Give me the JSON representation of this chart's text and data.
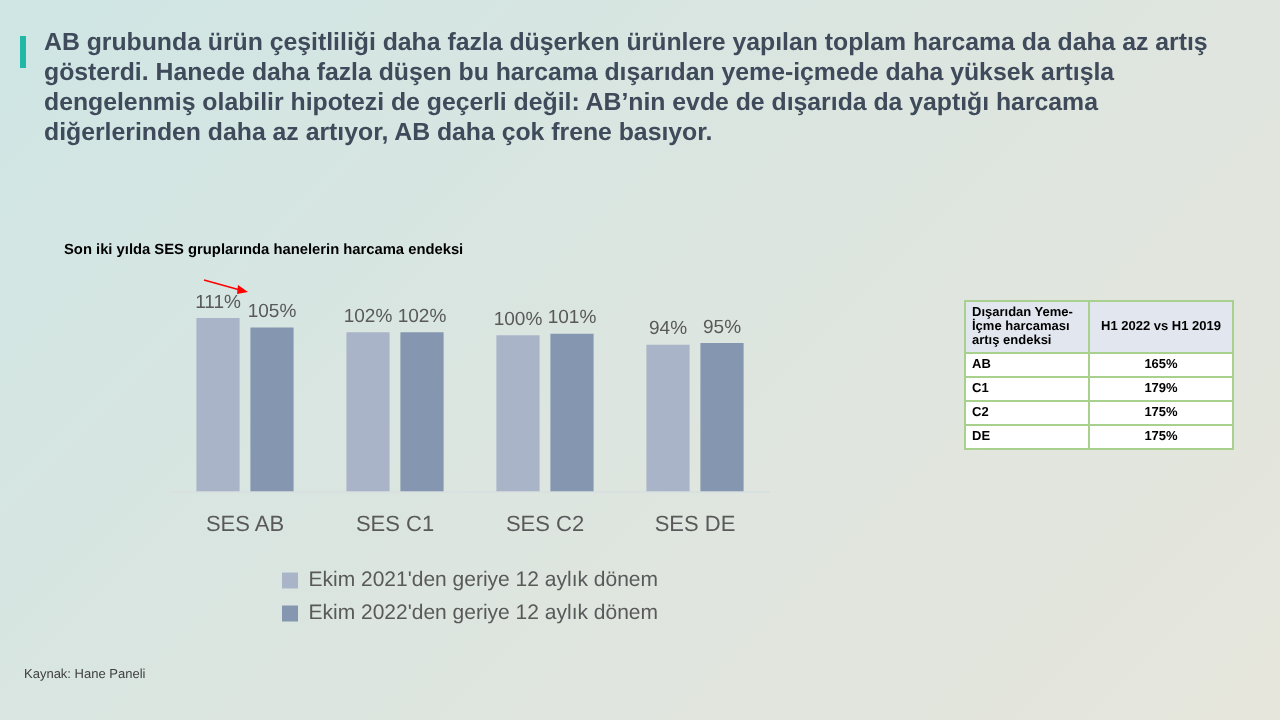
{
  "chart_data": [
    {
      "type": "bar",
      "title": "AB grubunda ürün çeşitliliği daha fazla düşerken ürünlere yapılan toplam harcama da daha az artış gösterdi. Hanede daha fazla düşen bu harcama dışarıdan yeme-içmede daha yüksek artışla dengelenmiş olabilir hipotezi de geçerli değil: AB’nin evde de dışarıda da yaptığı harcama diğerlerinden daha az artıyor, AB daha çok frene basıyor.",
      "subtitle": "Son iki yılda SES gruplarında hanelerin harcama endeksi",
      "categories": [
        "SES AB",
        "SES C1",
        "SES C2",
        "SES DE"
      ],
      "series": [
        {
          "name": "Ekim 2021'den geriye 12 aylık dönem",
          "color": "#aab4c8",
          "values": [
            111,
            102,
            100,
            94
          ],
          "value_labels": [
            "111%",
            "102%",
            "100%",
            "94%"
          ]
        },
        {
          "name": "Ekim 2022'den geriye 12 aylık dönem",
          "color": "#8496b0",
          "values": [
            105,
            102,
            101,
            95
          ],
          "value_labels": [
            "105%",
            "102%",
            "101%",
            "95%"
          ]
        }
      ],
      "tick_labels": "x",
      "grid": false,
      "legend": "bottom",
      "annotations": [
        "Kaynak: Hane Paneli"
      ]
    },
    {
      "type": "other",
      "xlabel": "Dışarıdan Yeme-İçme harcaması artış endeksi",
      "ylabel": "H1 2022 vs H1 2019",
      "categories": [
        "AB",
        "C1",
        "C2",
        "DE"
      ],
      "value_labels": [
        "165%",
        "179%",
        "175%",
        "175%"
      ]
    }
  ]
}
